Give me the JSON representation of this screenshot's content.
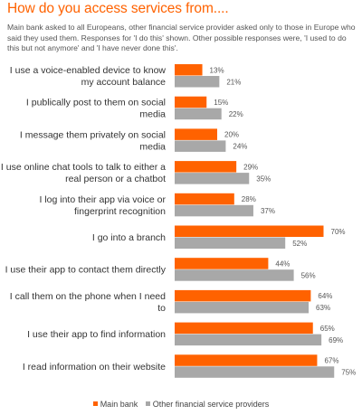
{
  "title": "How do you access services from....",
  "subtitle": "Main bank asked to all Europeans, other financial service provider asked only to those in Europe who said they used them. Responses for 'I do this' shown. Other possible responses were, 'I used to do this but not anymore' and 'I have never done this'.",
  "colors": {
    "main_bank": "#ff6200",
    "other": "#a8a8a8"
  },
  "legend": {
    "main_bank": "Main bank",
    "other": "Other financial service providers",
    "placement": "bottom-center"
  },
  "chart_data": {
    "type": "bar",
    "orientation": "horizontal",
    "categories": [
      [
        "I use a voice-enabled device to know",
        "my account balance"
      ],
      [
        "I publically post to them on social",
        "media"
      ],
      [
        "I message them privately on social",
        "media"
      ],
      [
        "I use online chat tools to talk to either a",
        "real person or a chatbot"
      ],
      [
        "I log into their app via voice or",
        "fingerprint recognition"
      ],
      [
        "I go into a branch"
      ],
      [
        "I use their app to contact them directly"
      ],
      [
        "I call them on the phone when I need",
        "to"
      ],
      [
        "I use their app to find information"
      ],
      [
        "I read information on their website"
      ]
    ],
    "series": [
      {
        "name": "Main bank",
        "values": [
          13,
          15,
          20,
          29,
          28,
          70,
          44,
          64,
          65,
          67
        ],
        "labels": [
          "13%",
          "15%",
          "20%",
          "29%",
          "28%",
          "70%",
          "44%",
          "64%",
          "65%",
          "67%"
        ]
      },
      {
        "name": "Other financial service providers",
        "values": [
          21,
          22,
          24,
          35,
          37,
          52,
          56,
          63,
          69,
          75
        ],
        "labels": [
          "21%",
          "22%",
          "24%",
          "35%",
          "37%",
          "52%",
          "56%",
          "63%",
          "69%",
          "75%"
        ]
      }
    ],
    "xlim": [
      0,
      100
    ],
    "grid": false,
    "title": "How do you access services from....",
    "xlabel": "",
    "ylabel": ""
  }
}
